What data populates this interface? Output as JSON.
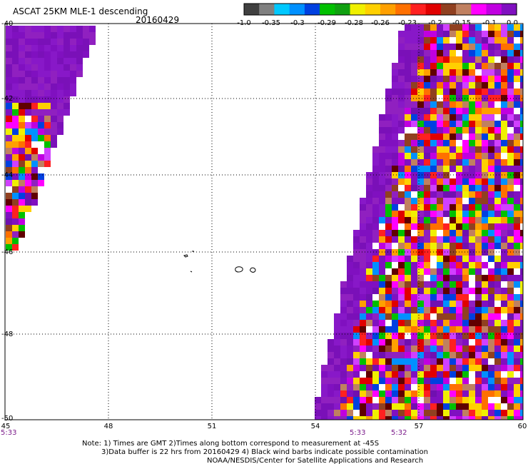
{
  "header": {
    "title": "ASCAT 25KM MLE-1 descending",
    "date": "20160429"
  },
  "colorbar": {
    "colors": [
      "#404040",
      "#808080",
      "#00c8ff",
      "#0090ff",
      "#0040e0",
      "#00c000",
      "#10a010",
      "#f0f000",
      "#ffd000",
      "#ffa000",
      "#ff7000",
      "#ff2020",
      "#e00000",
      "#904020",
      "#c08060",
      "#ff00ff",
      "#c000e0",
      "#8010c0"
    ],
    "labels": [
      "-1.0",
      "-0.35",
      "-0.3",
      "-0.29",
      "-0.28",
      "-0.26",
      "-0.23",
      "-0.2",
      "-0.15",
      "-0.1",
      "0.0"
    ]
  },
  "map": {
    "lon_labels": [
      "45",
      "48",
      "51",
      "54",
      "57",
      "60"
    ],
    "lat_labels": [
      "-40",
      "-42",
      "-44",
      "-46",
      "-48",
      "-50"
    ],
    "time_labels": [
      "5:33",
      "5:33",
      "5:32"
    ]
  },
  "swath_palette": [
    "#8010c0",
    "#8010c0",
    "#9020c0",
    "#7010b0",
    "#ff00ff",
    "#c000e0",
    "#ff2020",
    "#e00000",
    "#ffa000",
    "#ffd000",
    "#f0f000",
    "#ff7000",
    "#00c000",
    "#0090ff",
    "#0040e0",
    "#904020",
    "#600000",
    "#c08060",
    "#ffffff",
    "#d040ff"
  ],
  "notes": {
    "line1": "Note: 1) Times are GMT 2)Times along bottom correspond to measurement at -45S",
    "line2": "3)Data buffer is 22 hrs from 20160429 4) Black wind barbs indicate possible contamination",
    "line3": "NOAA/NESDIS/Center for Satellite Applications and Research"
  }
}
